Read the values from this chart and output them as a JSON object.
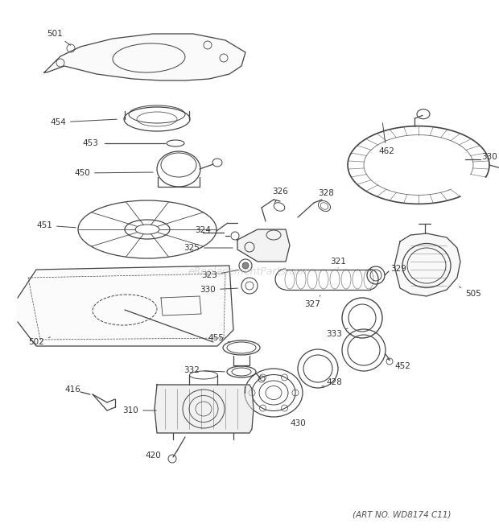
{
  "bg_color": "#ffffff",
  "line_color": "#444444",
  "text_color": "#333333",
  "watermark_color": "#bbbbbb",
  "footer_text": "(ART NO. WD8174 C11)",
  "watermark_text": "eReplacementParts.com",
  "figsize": [
    6.2,
    6.61
  ],
  "dpi": 100
}
